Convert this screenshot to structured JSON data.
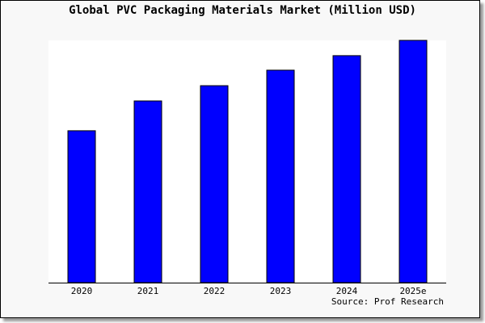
{
  "chart_data": {
    "type": "bar",
    "title": "Global PVC Packaging Materials Market (Million USD)",
    "categories": [
      "2020",
      "2021",
      "2022",
      "2023",
      "2024",
      "2025e"
    ],
    "values": [
      62.7,
      75.0,
      81.3,
      87.7,
      93.7,
      100.0
    ],
    "value_note": "relative bar heights (no y-axis printed), max = 100",
    "ylim": [
      0,
      100
    ],
    "xlabel": "",
    "ylabel": "",
    "grid": false,
    "bar_color": "#0000ff",
    "source": "Source: Prof Research"
  }
}
